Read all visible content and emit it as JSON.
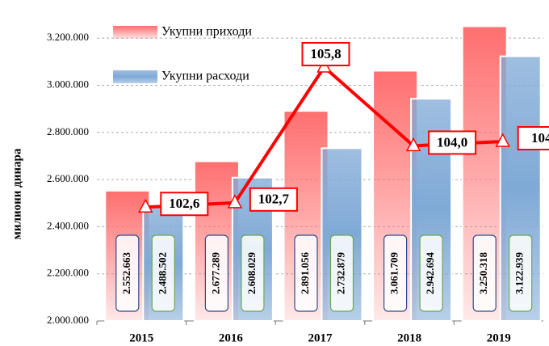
{
  "chart_data": {
    "type": "bar",
    "y_label": "милиони динара",
    "categories": [
      "2015",
      "2016",
      "2017",
      "2018",
      "2019"
    ],
    "series": [
      {
        "name": "Укупни приходи",
        "color": "#ff6f6f",
        "values": [
          2552663,
          2677289,
          2891056,
          3061709,
          3250318
        ],
        "value_labels": [
          "2.552.663",
          "2.677.289",
          "2.891.056",
          "3.061.709",
          "3.250.318"
        ]
      },
      {
        "name": "Укупни расходи",
        "color": "#7fa9d6",
        "values": [
          2488502,
          2608029,
          2732879,
          2942694,
          3122939
        ],
        "value_labels": [
          "2.488.502",
          "2.608.029",
          "2.732.879",
          "2.942.694",
          "3.122.939"
        ]
      },
      {
        "type": "line",
        "axis": "y2",
        "color": "#ff0000",
        "values": [
          102.6,
          102.7,
          105.8,
          104.0,
          104.1
        ],
        "value_labels": [
          "102,6",
          "102,7",
          "105,8",
          "104,0",
          "104"
        ]
      }
    ],
    "ylim": [
      2000000,
      3300000
    ],
    "yticks": [
      {
        "value": 2000000,
        "label": "2.000.000"
      },
      {
        "value": 2200000,
        "label": "2.200.000"
      },
      {
        "value": 2400000,
        "label": "2.400.000"
      },
      {
        "value": 2600000,
        "label": "2.600.000"
      },
      {
        "value": 2800000,
        "label": "2.800.000"
      },
      {
        "value": 3000000,
        "label": "3.000.000"
      },
      {
        "value": 3200000,
        "label": "3.200.000"
      }
    ],
    "y2lim": [
      100,
      107
    ],
    "grid": true
  }
}
